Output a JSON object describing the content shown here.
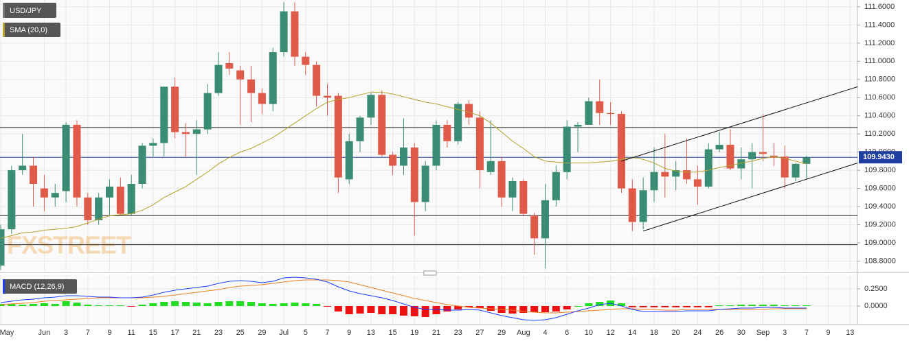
{
  "chart_data": {
    "type": "candlestick",
    "title": "USD/JPY",
    "categories": [
      "May",
      null,
      null,
      null,
      "Jun",
      null,
      "3",
      null,
      "7",
      null,
      "9",
      null,
      "11",
      null,
      "15",
      null,
      "17",
      null,
      "21",
      null,
      "23",
      null,
      "25",
      null,
      "29",
      null,
      "Jul",
      null,
      "5",
      null,
      "7",
      null,
      "9",
      null,
      "13",
      null,
      "15",
      null,
      "19",
      null,
      "21",
      null,
      "23",
      null,
      "27",
      null,
      "29",
      null,
      "Aug",
      null,
      "4",
      null,
      "6",
      null,
      "10",
      null,
      "12",
      null,
      "14",
      null,
      "18",
      null,
      "20",
      null,
      "24",
      null,
      "26",
      null,
      "30",
      null,
      "Sep",
      null,
      "3",
      null,
      "7",
      null,
      "9",
      null,
      "13"
    ],
    "up_color": "#3a8c74",
    "down_color": "#e05a4a",
    "open": [
      108.75,
      109.15,
      109.8,
      109.85,
      109.6,
      109.5,
      109.57,
      110.3,
      109.5,
      109.25,
      109.5,
      109.62,
      109.32,
      109.65,
      110.07,
      110.1,
      110.72,
      110.22,
      110.2,
      110.25,
      110.65,
      110.98,
      110.9,
      110.8,
      110.65,
      110.53,
      111.1,
      111.55,
      111.05,
      110.96,
      110.62,
      110.62,
      109.7,
      110.12,
      110.38,
      110.63,
      109.97,
      109.85,
      110.05,
      109.45,
      109.85,
      110.3,
      110.12,
      110.53,
      110.38,
      109.78,
      109.9,
      109.5,
      109.68,
      109.3,
      109.05,
      109.47,
      109.78,
      110.28,
      110.3,
      110.56,
      110.43,
      110.42,
      109.6,
      109.23,
      109.58,
      109.78,
      109.73,
      109.8,
      109.7,
      109.62,
      110.03,
      110.08,
      109.82,
      109.92,
      110.0,
      109.96,
      109.95,
      109.72,
      109.87,
      null,
      null,
      null,
      null
    ],
    "high": [
      109.2,
      109.85,
      110.2,
      109.95,
      109.75,
      109.65,
      110.33,
      110.35,
      109.55,
      109.55,
      109.7,
      109.72,
      109.75,
      110.1,
      110.15,
      110.72,
      110.82,
      110.32,
      110.35,
      110.75,
      111.1,
      111.1,
      110.95,
      110.95,
      110.7,
      111.15,
      111.65,
      111.65,
      111.1,
      111.0,
      110.75,
      110.65,
      110.2,
      110.4,
      110.65,
      110.68,
      110.0,
      110.37,
      110.1,
      109.9,
      110.35,
      110.35,
      110.55,
      110.57,
      110.45,
      110.35,
      109.95,
      109.72,
      109.7,
      109.33,
      109.65,
      109.85,
      110.35,
      110.33,
      110.6,
      110.8,
      110.55,
      110.45,
      109.7,
      109.72,
      110.05,
      110.2,
      109.9,
      110.15,
      109.85,
      110.1,
      110.22,
      110.25,
      110.05,
      110.1,
      110.42,
      110.1,
      110.07,
      109.88,
      109.96,
      null,
      null,
      null,
      null
    ],
    "low": [
      108.7,
      109.1,
      109.75,
      109.4,
      109.35,
      109.4,
      109.45,
      109.4,
      109.2,
      109.2,
      109.3,
      109.3,
      109.3,
      109.6,
      109.95,
      109.95,
      110.15,
      109.95,
      109.75,
      110.2,
      110.62,
      110.85,
      110.3,
      110.33,
      110.42,
      110.45,
      111.05,
      110.95,
      110.85,
      110.5,
      110.4,
      109.55,
      109.65,
      110.0,
      110.3,
      109.95,
      109.75,
      109.75,
      109.08,
      109.35,
      109.8,
      110.05,
      110.08,
      110.3,
      109.6,
      109.75,
      109.4,
      109.35,
      109.3,
      108.87,
      108.72,
      109.4,
      109.7,
      110.0,
      110.3,
      110.3,
      110.3,
      109.55,
      109.13,
      109.15,
      109.45,
      109.5,
      109.58,
      109.65,
      109.42,
      109.6,
      110.0,
      109.8,
      109.7,
      109.6,
      109.9,
      109.85,
      109.6,
      109.68,
      109.7,
      null,
      null,
      null,
      null
    ],
    "close": [
      109.15,
      109.8,
      109.85,
      109.65,
      109.5,
      109.55,
      110.3,
      109.5,
      109.25,
      109.5,
      109.62,
      109.32,
      109.65,
      110.07,
      110.1,
      110.72,
      110.22,
      110.2,
      110.25,
      110.65,
      110.96,
      110.92,
      110.8,
      110.65,
      110.53,
      111.1,
      111.55,
      111.05,
      110.96,
      110.62,
      110.6,
      109.72,
      110.12,
      110.38,
      110.63,
      109.97,
      109.85,
      110.05,
      109.45,
      109.85,
      110.3,
      110.12,
      110.53,
      110.38,
      109.8,
      109.9,
      109.5,
      109.68,
      109.32,
      109.05,
      109.47,
      109.78,
      110.28,
      110.3,
      110.56,
      110.43,
      110.42,
      109.6,
      109.23,
      109.58,
      109.78,
      109.73,
      109.8,
      109.7,
      109.62,
      110.03,
      110.08,
      109.82,
      109.92,
      110.0,
      109.98,
      109.94,
      109.72,
      109.87,
      109.943,
      null,
      null,
      null,
      null
    ],
    "sma": {
      "name": "SMA (20,0)",
      "color": "#b5a22a",
      "values": [
        109.05,
        109.08,
        109.11,
        109.12,
        109.14,
        109.15,
        109.16,
        109.18,
        109.22,
        109.26,
        109.3,
        109.31,
        109.32,
        109.36,
        109.42,
        109.5,
        109.56,
        109.62,
        109.7,
        109.78,
        109.87,
        109.94,
        110.0,
        110.04,
        110.1,
        110.16,
        110.24,
        110.32,
        110.4,
        110.48,
        110.55,
        110.58,
        110.6,
        110.63,
        110.66,
        110.66,
        110.64,
        110.61,
        110.58,
        110.55,
        110.53,
        110.5,
        110.47,
        110.44,
        110.4,
        110.32,
        110.22,
        110.12,
        110.04,
        109.95,
        109.9,
        109.89,
        109.88,
        109.88,
        109.88,
        109.89,
        109.9,
        109.92,
        109.94,
        109.92,
        109.88,
        109.82,
        109.79,
        109.78,
        109.78,
        109.8,
        109.83,
        109.85,
        109.88,
        109.9,
        109.93,
        109.95,
        109.93,
        109.9,
        109.87,
        null,
        null,
        null,
        null
      ]
    },
    "hlines": [
      110.27,
      109.3,
      108.98
    ],
    "trendlines": [
      {
        "x": [
          57,
          78.7
        ],
        "y": [
          109.9,
          110.72
        ]
      },
      {
        "x": [
          59,
          78.7
        ],
        "y": [
          109.13,
          109.88
        ]
      }
    ],
    "last_price": {
      "value": 109.943,
      "label": "109.9430",
      "color": "#1f3fa0"
    },
    "ylim": [
      108.69,
      111.675
    ],
    "yticks": [
      {
        "value": 108.8,
        "label": "108.8000"
      },
      {
        "value": 109.0,
        "label": "109.0000"
      },
      {
        "value": 109.2,
        "label": "109.2000"
      },
      {
        "value": 109.4,
        "label": "109.4000"
      },
      {
        "value": 109.6,
        "label": "109.6000"
      },
      {
        "value": 109.8,
        "label": "109.8000"
      },
      {
        "value": 110.0,
        "label": "110.0000"
      },
      {
        "value": 110.2,
        "label": "110.2000"
      },
      {
        "value": 110.4,
        "label": "110.4000"
      },
      {
        "value": 110.6,
        "label": "110.6000"
      },
      {
        "value": 110.8,
        "label": "110.8000"
      },
      {
        "value": 111.0,
        "label": "111.0000"
      },
      {
        "value": 111.2,
        "label": "111.2000"
      },
      {
        "value": 111.4,
        "label": "111.4000"
      },
      {
        "value": 111.6,
        "label": "111.6000"
      }
    ],
    "watermark": "FXSTREET",
    "macd": {
      "name": "MACD (12,26,9)",
      "ylim": [
        -0.22,
        0.45
      ],
      "yticks": [
        {
          "value": 0.25,
          "label": "0.2500"
        },
        {
          "value": 0,
          "label": "0.0000"
        }
      ],
      "macd_color": "#1a3cff",
      "signal_color": "#f08020",
      "pos_color": "#22dd22",
      "neg_color": "#ee1111",
      "macd": [
        0.05,
        0.07,
        0.09,
        0.1,
        0.12,
        0.13,
        0.15,
        0.15,
        0.14,
        0.13,
        0.13,
        0.12,
        0.12,
        0.13,
        0.16,
        0.2,
        0.23,
        0.25,
        0.27,
        0.29,
        0.33,
        0.36,
        0.37,
        0.36,
        0.34,
        0.36,
        0.41,
        0.42,
        0.41,
        0.39,
        0.35,
        0.28,
        0.22,
        0.18,
        0.15,
        0.12,
        0.08,
        0.03,
        -0.02,
        -0.05,
        -0.05,
        -0.06,
        -0.06,
        -0.05,
        -0.06,
        -0.1,
        -0.14,
        -0.17,
        -0.2,
        -0.21,
        -0.2,
        -0.17,
        -0.12,
        -0.07,
        -0.03,
        0.02,
        0.04,
        0.0,
        -0.05,
        -0.08,
        -0.08,
        -0.08,
        -0.08,
        -0.07,
        -0.07,
        -0.07,
        -0.05,
        -0.04,
        -0.03,
        -0.03,
        -0.02,
        -0.02,
        -0.03,
        -0.03,
        -0.03,
        null,
        null,
        null,
        null
      ],
      "signal": [
        0.02,
        0.03,
        0.04,
        0.05,
        0.07,
        0.08,
        0.09,
        0.1,
        0.11,
        0.12,
        0.12,
        0.12,
        0.12,
        0.12,
        0.13,
        0.14,
        0.16,
        0.18,
        0.2,
        0.22,
        0.24,
        0.27,
        0.29,
        0.3,
        0.31,
        0.33,
        0.35,
        0.37,
        0.38,
        0.38,
        0.38,
        0.37,
        0.35,
        0.31,
        0.27,
        0.23,
        0.19,
        0.15,
        0.11,
        0.08,
        0.05,
        0.02,
        0.0,
        -0.02,
        -0.03,
        -0.04,
        -0.05,
        -0.06,
        -0.08,
        -0.09,
        -0.1,
        -0.1,
        -0.09,
        -0.08,
        -0.07,
        -0.06,
        -0.05,
        -0.04,
        -0.04,
        -0.05,
        -0.05,
        -0.06,
        -0.06,
        -0.05,
        -0.05,
        -0.05,
        -0.05,
        -0.05,
        -0.05,
        -0.05,
        -0.05,
        -0.04,
        -0.04,
        -0.04,
        -0.04,
        null,
        null,
        null,
        null
      ],
      "histogram": [
        0.03,
        0.03,
        0.02,
        0.03,
        0.04,
        0.03,
        0.07,
        0.05,
        0.02,
        0.01,
        0.01,
        0.01,
        -0.01,
        0.02,
        0.04,
        0.06,
        0.07,
        0.06,
        0.05,
        0.04,
        0.06,
        0.07,
        0.07,
        0.06,
        0.04,
        0.03,
        0.04,
        0.05,
        0.04,
        0.03,
        -0.01,
        -0.08,
        -0.12,
        -0.11,
        -0.1,
        -0.12,
        -0.12,
        -0.14,
        -0.15,
        -0.16,
        -0.12,
        -0.08,
        -0.05,
        -0.02,
        -0.03,
        -0.07,
        -0.1,
        -0.11,
        -0.1,
        -0.09,
        -0.09,
        -0.08,
        -0.05,
        0.0,
        0.04,
        0.06,
        0.08,
        0.04,
        -0.02,
        -0.02,
        -0.02,
        -0.02,
        -0.02,
        -0.02,
        -0.02,
        -0.02,
        0.01,
        0.01,
        0.02,
        0.02,
        0.02,
        0.02,
        0.01,
        0.01,
        0.01,
        null,
        null,
        null,
        null
      ]
    }
  }
}
